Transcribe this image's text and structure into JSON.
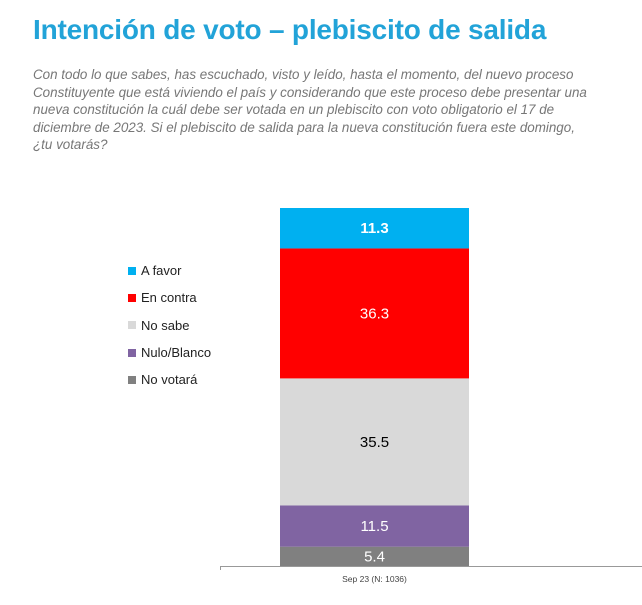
{
  "title": "Intención de voto – plebiscito de salida",
  "subtitle": "Con todo lo que sabes, has escuchado, visto y leído, hasta el momento, del nuevo proceso Constituyente que está viviendo el país y considerando que este proceso debe presentar una nueva constitución la cuál debe ser votada en un plebiscito con voto obligatorio el 17 de diciembre de 2023.  Si el plebiscito de salida para la nueva constitución fuera este domingo, ¿tu votarás?",
  "chart_data": {
    "type": "bar",
    "stacked": true,
    "categories": [
      "Sep 23 (N: 1036)"
    ],
    "series": [
      {
        "name": "A favor",
        "values": [
          11.3
        ],
        "color": "#00b0f0",
        "label_color": "#ffffff"
      },
      {
        "name": "En contra",
        "values": [
          36.3
        ],
        "color": "#ff0000",
        "label_color": "#ffffff"
      },
      {
        "name": "No sabe",
        "values": [
          35.5
        ],
        "color": "#d9d9d9",
        "label_color": "#000000"
      },
      {
        "name": "Nulo/Blanco",
        "values": [
          11.5
        ],
        "color": "#8064a2",
        "label_color": "#ffffff"
      },
      {
        "name": "No votará",
        "values": [
          5.4
        ],
        "color": "#808080",
        "label_color": "#ffffff"
      }
    ],
    "ylim": [
      0,
      100
    ],
    "grid": false,
    "legend_position": "left"
  }
}
